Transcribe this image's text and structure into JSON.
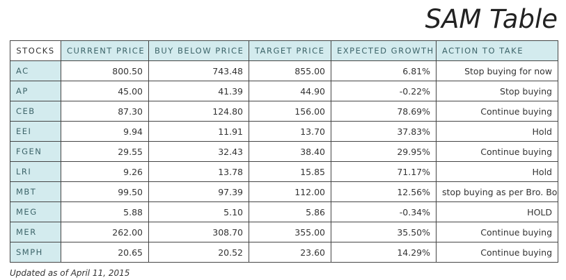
{
  "title": "SAM Table",
  "table": {
    "headers": [
      "STOCKS",
      "CURRENT PRICE",
      "BUY BELOW PRICE",
      "TARGET PRICE",
      "EXPECTED GROWTH",
      "ACTION TO TAKE"
    ],
    "rows": [
      [
        "AC",
        "800.50",
        "743.48",
        "855.00",
        "6.81%",
        "Stop buying for now"
      ],
      [
        "AP",
        "45.00",
        "41.39",
        "44.90",
        "-0.22%",
        "Stop buying"
      ],
      [
        "CEB",
        "87.30",
        "124.80",
        "156.00",
        "78.69%",
        "Continue buying"
      ],
      [
        "EEI",
        "9.94",
        "11.91",
        "13.70",
        "37.83%",
        "Hold"
      ],
      [
        "FGEN",
        "29.55",
        "32.43",
        "38.40",
        "29.95%",
        "Continue buying"
      ],
      [
        "LRI",
        "9.26",
        "13.78",
        "15.85",
        "71.17%",
        "Hold"
      ],
      [
        "MBT",
        "99.50",
        "97.39",
        "112.00",
        "12.56%",
        "stop buying as per Bro. Bo"
      ],
      [
        "MEG",
        "5.88",
        "5.10",
        "5.86",
        "-0.34%",
        "HOLD"
      ],
      [
        "MER",
        "262.00",
        "308.70",
        "355.00",
        "35.50%",
        "Continue buying"
      ],
      [
        "SMPH",
        "20.65",
        "20.52",
        "23.60",
        "14.29%",
        "Continue buying"
      ]
    ]
  },
  "footer": "Updated as of April 11, 2015"
}
